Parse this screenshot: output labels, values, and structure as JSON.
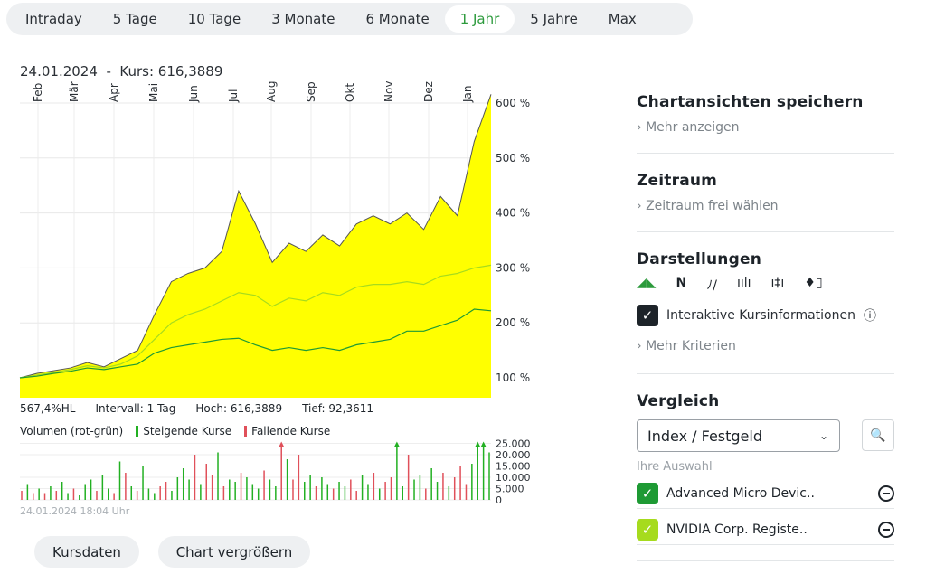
{
  "tabs": [
    {
      "label": "Intraday"
    },
    {
      "label": "5 Tage"
    },
    {
      "label": "10 Tage"
    },
    {
      "label": "3 Monate"
    },
    {
      "label": "6 Monate"
    },
    {
      "label": "1 Jahr",
      "active": true
    },
    {
      "label": "5 Jahre"
    },
    {
      "label": "Max"
    }
  ],
  "header": {
    "date": "24.01.2024",
    "separator": "-",
    "kurs": "Kurs: 616,3889"
  },
  "stats": {
    "hl": "567,4%HL",
    "interval": "Intervall: 1 Tag",
    "high": "Hoch: 616,3889",
    "low": "Tief: 92,3611"
  },
  "volume_legend": {
    "title": "Volumen (rot-grün)",
    "up": "Steigende Kurse",
    "down": "Fallende Kurse"
  },
  "timestamp": "24.01.2024 18:04 Uhr",
  "buttons": {
    "kursdaten": "Kursdaten",
    "enlarge": "Chart vergrößern"
  },
  "sidebar": {
    "save": {
      "title": "Chartansichten speichern",
      "more": "Mehr anzeigen"
    },
    "range": {
      "title": "Zeitraum",
      "more": "Zeitraum frei wählen"
    },
    "views": {
      "title": "Darstellungen",
      "icons": [
        "mountain-chart",
        "line-chart",
        "dotted-line-chart",
        "ohlc-bars",
        "hlc-bars",
        "candlestick"
      ],
      "interactive": "Interaktive Kursinformationen",
      "more": "Mehr Kriterien"
    },
    "compare": {
      "title": "Vergleich",
      "select": "Index / Festgeld",
      "selection_label": "Ihre Auswahl",
      "items": [
        {
          "name": "Advanced Micro Devic..",
          "color": "#1e9a34"
        },
        {
          "name": "NVIDIA Corp. Registe..",
          "color": "#a6db1e"
        }
      ]
    }
  },
  "colors": {
    "accent": "#2c9a3c",
    "area": "#ffff00",
    "up": "#22b022",
    "down": "#e0505a"
  },
  "chart_data": [
    {
      "type": "area",
      "x_ticks": [
        "Feb",
        "Mär",
        "Apr",
        "Mai",
        "Jun",
        "Jul",
        "Aug",
        "Sep",
        "Okt",
        "Nov",
        "Dez",
        "Jan"
      ],
      "y_ticks": [
        "100 %",
        "200 %",
        "300 %",
        "400 %",
        "500 %",
        "600 %"
      ],
      "ylim": [
        70,
        630
      ],
      "grid": true,
      "series": [
        {
          "color": "#ffff00",
          "values": [
            100,
            108,
            113,
            118,
            128,
            120,
            135,
            150,
            215,
            275,
            290,
            300,
            330,
            440,
            380,
            310,
            345,
            330,
            360,
            340,
            380,
            395,
            380,
            400,
            370,
            430,
            395,
            530,
            616
          ]
        },
        {
          "color": "#a6db1e",
          "values": [
            100,
            105,
            110,
            115,
            122,
            118,
            125,
            140,
            170,
            200,
            215,
            225,
            240,
            255,
            250,
            230,
            245,
            240,
            255,
            250,
            265,
            270,
            270,
            275,
            270,
            285,
            290,
            300,
            305
          ]
        },
        {
          "color": "#1e9a34",
          "values": [
            100,
            103,
            108,
            112,
            118,
            115,
            120,
            125,
            145,
            155,
            160,
            165,
            170,
            172,
            160,
            150,
            155,
            150,
            155,
            150,
            160,
            165,
            170,
            185,
            185,
            195,
            205,
            225,
            222
          ]
        }
      ]
    },
    {
      "type": "bar",
      "y_ticks": [
        "0",
        "5.000",
        "10.000",
        "15.000",
        "20.000",
        "25.000"
      ],
      "ylim": [
        0,
        25000
      ],
      "values": [
        4,
        7,
        3,
        5,
        3,
        6,
        4,
        8,
        3,
        5,
        2,
        7,
        9,
        4,
        11,
        5,
        3,
        17,
        12,
        6,
        4,
        15,
        5,
        3,
        6,
        8,
        4,
        10,
        14,
        9,
        20,
        7,
        16,
        11,
        21,
        6,
        9,
        8,
        12,
        10,
        7,
        5,
        13,
        9,
        6,
        27,
        18,
        9,
        20,
        8,
        11,
        6,
        10,
        7,
        5,
        8,
        6,
        9,
        4,
        11,
        7,
        12,
        5,
        8,
        10,
        27,
        6,
        20,
        9,
        11,
        5,
        14,
        8,
        12,
        6,
        10,
        15,
        7,
        16,
        27,
        27,
        21
      ],
      "direction": "dudududuuduuuduudududuuudduuuududduduuduuuduududduuduuduudduududduuduuduududdduuuu"
    }
  ]
}
